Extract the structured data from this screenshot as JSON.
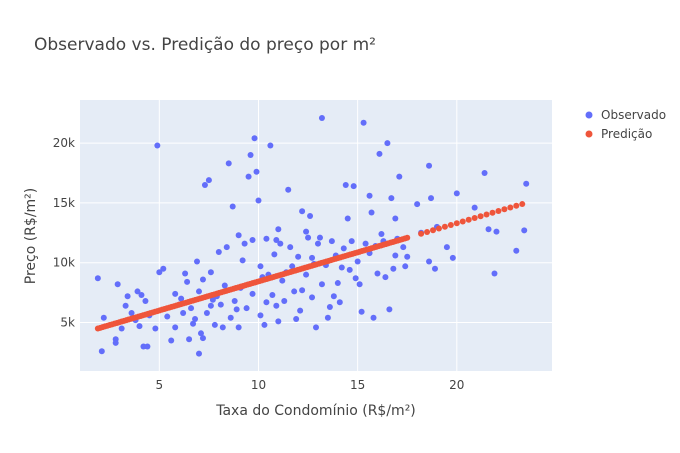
{
  "chart_data": {
    "type": "scatter",
    "title": "Observado vs. Predição do preço por m²",
    "xlabel": "Taxa do Condomínio (R$/m²)",
    "ylabel": "Preço (R$/m²)",
    "xlim": [
      1,
      24.8
    ],
    "ylim": [
      950,
      23600
    ],
    "xticks": [
      5,
      10,
      15,
      20
    ],
    "xtick_labels": [
      "5",
      "10",
      "15",
      "20"
    ],
    "yticks": [
      5000,
      10000,
      15000,
      20000
    ],
    "ytick_labels": [
      "5k",
      "10k",
      "15k",
      "20k"
    ],
    "grid": true,
    "legend_position": "top-right",
    "colors": {
      "observado": "#636efa",
      "predicao": "#ef553b",
      "plot_bg": "#e5ecf6",
      "grid": "#ffffff"
    },
    "series": [
      {
        "name": "Observado",
        "mode": "markers",
        "points": [
          [
            1.9,
            8700
          ],
          [
            2.1,
            2600
          ],
          [
            2.2,
            5400
          ],
          [
            2.8,
            3600
          ],
          [
            2.8,
            3300
          ],
          [
            2.9,
            8200
          ],
          [
            3.1,
            4500
          ],
          [
            3.3,
            6400
          ],
          [
            3.4,
            7200
          ],
          [
            3.6,
            5800
          ],
          [
            3.8,
            5200
          ],
          [
            3.9,
            7600
          ],
          [
            4.0,
            4700
          ],
          [
            4.1,
            7300
          ],
          [
            4.2,
            3000
          ],
          [
            4.3,
            6800
          ],
          [
            4.4,
            3000
          ],
          [
            4.8,
            4500
          ],
          [
            4.9,
            19800
          ],
          [
            5.0,
            9200
          ],
          [
            5.2,
            9500
          ],
          [
            5.4,
            5500
          ],
          [
            5.6,
            3500
          ],
          [
            5.8,
            4600
          ],
          [
            6.0,
            6500
          ],
          [
            6.1,
            7000
          ],
          [
            6.2,
            5800
          ],
          [
            6.4,
            8400
          ],
          [
            6.5,
            3600
          ],
          [
            6.6,
            6200
          ],
          [
            6.7,
            4900
          ],
          [
            6.9,
            10100
          ],
          [
            7.0,
            2400
          ],
          [
            7.1,
            4100
          ],
          [
            7.2,
            3700
          ],
          [
            7.3,
            16500
          ],
          [
            7.4,
            5800
          ],
          [
            7.5,
            16900
          ],
          [
            7.6,
            6400
          ],
          [
            7.6,
            9200
          ],
          [
            7.8,
            4800
          ],
          [
            7.9,
            7200
          ],
          [
            8.0,
            10900
          ],
          [
            8.1,
            6500
          ],
          [
            8.2,
            4600
          ],
          [
            8.4,
            11300
          ],
          [
            8.5,
            18300
          ],
          [
            8.6,
            5400
          ],
          [
            8.7,
            14700
          ],
          [
            8.9,
            6100
          ],
          [
            9.0,
            4600
          ],
          [
            9.1,
            7900
          ],
          [
            9.3,
            11600
          ],
          [
            9.4,
            6200
          ],
          [
            9.5,
            17200
          ],
          [
            9.6,
            19000
          ],
          [
            9.7,
            11900
          ],
          [
            9.8,
            20400
          ],
          [
            9.9,
            17600
          ],
          [
            10.0,
            15200
          ],
          [
            10.1,
            9700
          ],
          [
            10.1,
            5600
          ],
          [
            10.2,
            8800
          ],
          [
            10.3,
            4800
          ],
          [
            10.4,
            12000
          ],
          [
            10.5,
            9000
          ],
          [
            10.6,
            19800
          ],
          [
            10.7,
            7300
          ],
          [
            10.8,
            10700
          ],
          [
            10.9,
            6400
          ],
          [
            11.0,
            5100
          ],
          [
            11.1,
            11600
          ],
          [
            11.2,
            8500
          ],
          [
            11.4,
            9200
          ],
          [
            11.5,
            16100
          ],
          [
            11.6,
            11300
          ],
          [
            11.8,
            7600
          ],
          [
            11.9,
            5300
          ],
          [
            12.0,
            10500
          ],
          [
            12.1,
            6000
          ],
          [
            12.2,
            14300
          ],
          [
            12.4,
            9000
          ],
          [
            12.5,
            12100
          ],
          [
            12.6,
            13900
          ],
          [
            12.7,
            7100
          ],
          [
            12.8,
            9900
          ],
          [
            12.9,
            4600
          ],
          [
            13.1,
            12100
          ],
          [
            13.2,
            22100
          ],
          [
            13.4,
            9800
          ],
          [
            13.5,
            5400
          ],
          [
            13.7,
            11800
          ],
          [
            13.8,
            7200
          ],
          [
            13.9,
            10600
          ],
          [
            14.0,
            8300
          ],
          [
            14.1,
            6700
          ],
          [
            14.3,
            11200
          ],
          [
            14.4,
            16500
          ],
          [
            14.5,
            13700
          ],
          [
            14.6,
            9400
          ],
          [
            14.8,
            16400
          ],
          [
            14.9,
            8700
          ],
          [
            15.0,
            10100
          ],
          [
            15.2,
            5900
          ],
          [
            15.3,
            21700
          ],
          [
            15.4,
            11600
          ],
          [
            15.6,
            15600
          ],
          [
            15.7,
            14200
          ],
          [
            15.8,
            5400
          ],
          [
            15.9,
            11400
          ],
          [
            16.0,
            9100
          ],
          [
            16.1,
            19100
          ],
          [
            16.2,
            12400
          ],
          [
            16.4,
            8800
          ],
          [
            16.5,
            20000
          ],
          [
            16.6,
            6100
          ],
          [
            16.7,
            15400
          ],
          [
            16.8,
            9500
          ],
          [
            16.9,
            13700
          ],
          [
            17.0,
            12000
          ],
          [
            17.1,
            17200
          ],
          [
            17.3,
            11300
          ],
          [
            17.5,
            10500
          ],
          [
            18.0,
            14900
          ],
          [
            18.2,
            12500
          ],
          [
            18.6,
            18100
          ],
          [
            18.6,
            10100
          ],
          [
            18.7,
            15400
          ],
          [
            18.9,
            9500
          ],
          [
            19.0,
            13000
          ],
          [
            19.5,
            11300
          ],
          [
            19.8,
            10400
          ],
          [
            20.0,
            15800
          ],
          [
            20.9,
            14600
          ],
          [
            21.4,
            17500
          ],
          [
            21.6,
            12800
          ],
          [
            21.9,
            9100
          ],
          [
            22.0,
            12600
          ],
          [
            23.0,
            11000
          ],
          [
            23.4,
            12700
          ],
          [
            23.5,
            16600
          ],
          [
            4.5,
            5600
          ],
          [
            5.8,
            7400
          ],
          [
            6.3,
            9100
          ],
          [
            6.8,
            5300
          ],
          [
            7.2,
            8600
          ],
          [
            7.7,
            6900
          ],
          [
            8.3,
            8100
          ],
          [
            8.8,
            6800
          ],
          [
            9.2,
            10200
          ],
          [
            9.7,
            7400
          ],
          [
            10.4,
            6700
          ],
          [
            10.9,
            11900
          ],
          [
            11.3,
            6800
          ],
          [
            11.7,
            9700
          ],
          [
            12.2,
            7700
          ],
          [
            12.7,
            10400
          ],
          [
            13.2,
            8200
          ],
          [
            13.6,
            6300
          ],
          [
            14.2,
            9600
          ],
          [
            14.7,
            11800
          ],
          [
            15.1,
            8200
          ],
          [
            15.6,
            10800
          ],
          [
            16.3,
            11800
          ],
          [
            16.9,
            10600
          ],
          [
            17.4,
            9700
          ],
          [
            7.0,
            7600
          ],
          [
            9.0,
            12300
          ],
          [
            11.0,
            12800
          ],
          [
            12.4,
            12600
          ],
          [
            13.0,
            11600
          ]
        ]
      },
      {
        "name": "Predição",
        "mode": "markers",
        "line": {
          "x0": 1.9,
          "y0": 4500,
          "x1": 23.5,
          "y1": 15000,
          "x_break": 17.6
        }
      }
    ]
  }
}
